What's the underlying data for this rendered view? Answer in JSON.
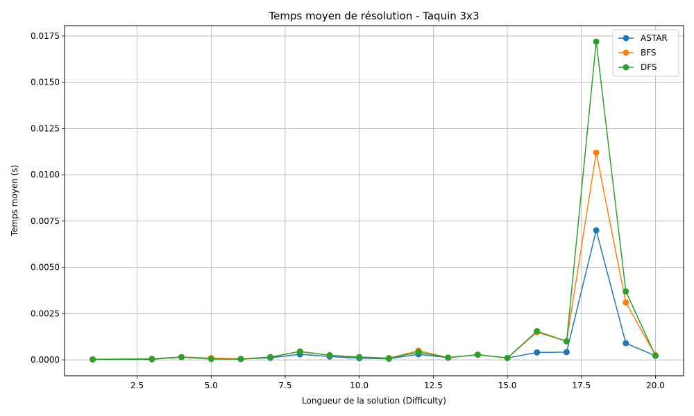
{
  "chart_data": {
    "type": "line",
    "title": "Temps moyen de résolution - Taquin 3x3",
    "xlabel": "Longueur de la solution (Difficulty)",
    "ylabel": "Temps moyen (s)",
    "xlim": [
      0.05,
      20.95
    ],
    "ylim": [
      -0.00086,
      0.01806
    ],
    "x_ticks": [
      2.5,
      5.0,
      7.5,
      10.0,
      12.5,
      15.0,
      17.5,
      20.0
    ],
    "x_tick_labels": [
      "2.5",
      "5.0",
      "7.5",
      "10.0",
      "12.5",
      "15.0",
      "17.5",
      "20.0"
    ],
    "y_ticks": [
      0.0,
      0.0025,
      0.005,
      0.0075,
      0.01,
      0.0125,
      0.015,
      0.0175
    ],
    "y_tick_labels": [
      "0.0000",
      "0.0025",
      "0.0050",
      "0.0075",
      "0.0100",
      "0.0125",
      "0.0150",
      "0.0175"
    ],
    "grid": true,
    "legend_position": "top-right",
    "x": [
      1,
      3,
      4,
      5,
      6,
      7,
      8,
      9,
      10,
      11,
      12,
      13,
      14,
      15,
      16,
      17,
      18,
      19,
      20
    ],
    "series": [
      {
        "name": "ASTAR",
        "color": "#1f77b4",
        "values": [
          3e-05,
          6e-05,
          0.00015,
          8e-05,
          5e-05,
          0.00011,
          0.0003,
          0.00018,
          9e-05,
          6e-05,
          0.0003,
          0.00012,
          0.00028,
          0.0001,
          0.0004,
          0.00042,
          0.007,
          0.0009,
          0.00022
        ]
      },
      {
        "name": "BFS",
        "color": "#ff7f0e",
        "values": [
          3e-05,
          4e-05,
          0.00015,
          0.0001,
          6e-05,
          0.00015,
          0.00045,
          0.00025,
          0.00015,
          9e-05,
          0.0005,
          0.00012,
          0.00028,
          0.0001,
          0.0015,
          0.001,
          0.0112,
          0.0031,
          0.00025
        ]
      },
      {
        "name": "DFS",
        "color": "#2ca02c",
        "values": [
          2e-05,
          3e-05,
          0.00015,
          5e-05,
          4e-05,
          0.00015,
          0.00045,
          0.00025,
          0.00015,
          9e-05,
          0.00042,
          0.00012,
          0.00028,
          0.0001,
          0.00155,
          0.001,
          0.0172,
          0.0037,
          0.00022
        ]
      }
    ]
  }
}
